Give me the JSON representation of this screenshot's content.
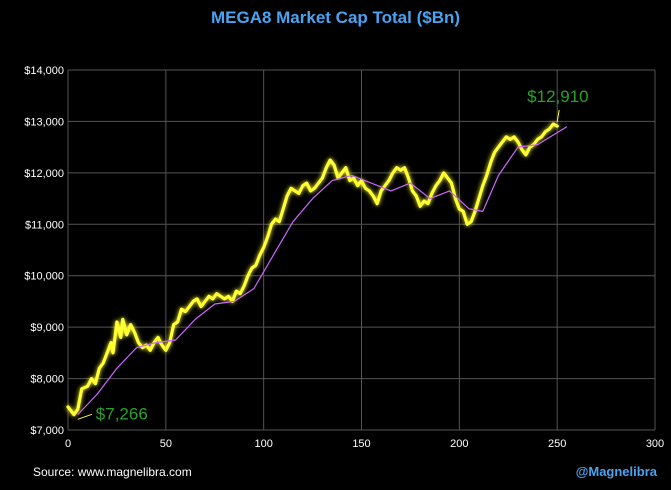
{
  "colors": {
    "title": "#4aa3f0",
    "line": "#ffff33",
    "glow": "#ffff33",
    "moving_average": "#cc66ff",
    "annotation": "#2ca02c",
    "grid": "#555555",
    "handle": "#4aa3f0"
  },
  "footer": {
    "source": "Source: www.magnelibra.com",
    "handle": "@Magnelibra"
  },
  "chart_data": {
    "type": "line",
    "title": "MEGA8 Market Cap Total ($Bn)",
    "xlabel": "",
    "ylabel": "",
    "xlim": [
      0,
      300
    ],
    "ylim": [
      7000,
      14000
    ],
    "xticks": [
      0,
      50,
      100,
      150,
      200,
      250,
      300
    ],
    "yticks": [
      7000,
      8000,
      9000,
      10000,
      11000,
      12000,
      13000,
      14000
    ],
    "ytick_labels": [
      "$7,000",
      "$8,000",
      "$9,000",
      "$10,000",
      "$11,000",
      "$12,000",
      "$13,000",
      "$14,000"
    ],
    "grid": true,
    "series": [
      {
        "name": "MEGA8 Market Cap",
        "style": "line",
        "points": [
          [
            0,
            7450
          ],
          [
            3,
            7300
          ],
          [
            5,
            7400
          ],
          [
            7,
            7800
          ],
          [
            10,
            7850
          ],
          [
            12,
            8000
          ],
          [
            14,
            7900
          ],
          [
            16,
            8200
          ],
          [
            18,
            8300
          ],
          [
            20,
            8500
          ],
          [
            22,
            8700
          ],
          [
            23,
            8500
          ],
          [
            25,
            9100
          ],
          [
            27,
            8800
          ],
          [
            28,
            9150
          ],
          [
            30,
            8850
          ],
          [
            32,
            9050
          ],
          [
            34,
            8900
          ],
          [
            36,
            8700
          ],
          [
            38,
            8600
          ],
          [
            40,
            8650
          ],
          [
            42,
            8550
          ],
          [
            44,
            8700
          ],
          [
            46,
            8800
          ],
          [
            48,
            8650
          ],
          [
            50,
            8550
          ],
          [
            52,
            8700
          ],
          [
            54,
            9050
          ],
          [
            56,
            9100
          ],
          [
            58,
            9350
          ],
          [
            60,
            9300
          ],
          [
            62,
            9400
          ],
          [
            64,
            9500
          ],
          [
            66,
            9550
          ],
          [
            68,
            9400
          ],
          [
            70,
            9500
          ],
          [
            72,
            9600
          ],
          [
            74,
            9550
          ],
          [
            76,
            9650
          ],
          [
            78,
            9600
          ],
          [
            80,
            9550
          ],
          [
            82,
            9600
          ],
          [
            84,
            9500
          ],
          [
            86,
            9700
          ],
          [
            88,
            9650
          ],
          [
            90,
            9800
          ],
          [
            92,
            10000
          ],
          [
            94,
            10150
          ],
          [
            96,
            10200
          ],
          [
            98,
            10400
          ],
          [
            100,
            10550
          ],
          [
            102,
            10750
          ],
          [
            104,
            11000
          ],
          [
            106,
            11100
          ],
          [
            108,
            11050
          ],
          [
            110,
            11300
          ],
          [
            112,
            11550
          ],
          [
            114,
            11700
          ],
          [
            116,
            11650
          ],
          [
            118,
            11600
          ],
          [
            120,
            11750
          ],
          [
            122,
            11800
          ],
          [
            124,
            11650
          ],
          [
            126,
            11700
          ],
          [
            128,
            11800
          ],
          [
            130,
            11900
          ],
          [
            132,
            12100
          ],
          [
            134,
            12250
          ],
          [
            136,
            12150
          ],
          [
            138,
            11900
          ],
          [
            140,
            12000
          ],
          [
            142,
            12100
          ],
          [
            144,
            11850
          ],
          [
            146,
            11900
          ],
          [
            148,
            11750
          ],
          [
            150,
            11850
          ],
          [
            152,
            11700
          ],
          [
            154,
            11650
          ],
          [
            156,
            11550
          ],
          [
            158,
            11400
          ],
          [
            160,
            11650
          ],
          [
            162,
            11750
          ],
          [
            164,
            11850
          ],
          [
            166,
            12000
          ],
          [
            168,
            12100
          ],
          [
            170,
            12050
          ],
          [
            172,
            12100
          ],
          [
            174,
            11900
          ],
          [
            176,
            11650
          ],
          [
            178,
            11550
          ],
          [
            180,
            11350
          ],
          [
            182,
            11450
          ],
          [
            184,
            11400
          ],
          [
            186,
            11600
          ],
          [
            188,
            11750
          ],
          [
            190,
            11850
          ],
          [
            192,
            12000
          ],
          [
            194,
            11900
          ],
          [
            196,
            11800
          ],
          [
            198,
            11500
          ],
          [
            200,
            11300
          ],
          [
            202,
            11250
          ],
          [
            204,
            11000
          ],
          [
            206,
            11050
          ],
          [
            208,
            11250
          ],
          [
            210,
            11500
          ],
          [
            212,
            11750
          ],
          [
            214,
            11950
          ],
          [
            216,
            12200
          ],
          [
            218,
            12400
          ],
          [
            220,
            12500
          ],
          [
            222,
            12600
          ],
          [
            224,
            12700
          ],
          [
            226,
            12650
          ],
          [
            228,
            12700
          ],
          [
            230,
            12600
          ],
          [
            232,
            12450
          ],
          [
            234,
            12350
          ],
          [
            236,
            12500
          ],
          [
            238,
            12550
          ],
          [
            240,
            12650
          ],
          [
            242,
            12700
          ],
          [
            244,
            12800
          ],
          [
            246,
            12850
          ],
          [
            248,
            12950
          ],
          [
            250,
            12910
          ]
        ]
      },
      {
        "name": "Moving Average",
        "style": "thin-line",
        "points": [
          [
            5,
            7300
          ],
          [
            15,
            7700
          ],
          [
            25,
            8200
          ],
          [
            35,
            8600
          ],
          [
            45,
            8700
          ],
          [
            55,
            8750
          ],
          [
            65,
            9150
          ],
          [
            75,
            9450
          ],
          [
            85,
            9500
          ],
          [
            95,
            9750
          ],
          [
            105,
            10400
          ],
          [
            115,
            11050
          ],
          [
            125,
            11500
          ],
          [
            135,
            11850
          ],
          [
            145,
            11950
          ],
          [
            155,
            11800
          ],
          [
            165,
            11650
          ],
          [
            175,
            11800
          ],
          [
            185,
            11500
          ],
          [
            195,
            11650
          ],
          [
            205,
            11300
          ],
          [
            212,
            11250
          ],
          [
            220,
            11950
          ],
          [
            230,
            12500
          ],
          [
            240,
            12550
          ],
          [
            255,
            12900
          ]
        ]
      }
    ],
    "annotations": [
      {
        "text": "$7,266",
        "x": 5,
        "y": 7266
      },
      {
        "text": "$12,910",
        "x": 250,
        "y": 12910
      }
    ]
  }
}
